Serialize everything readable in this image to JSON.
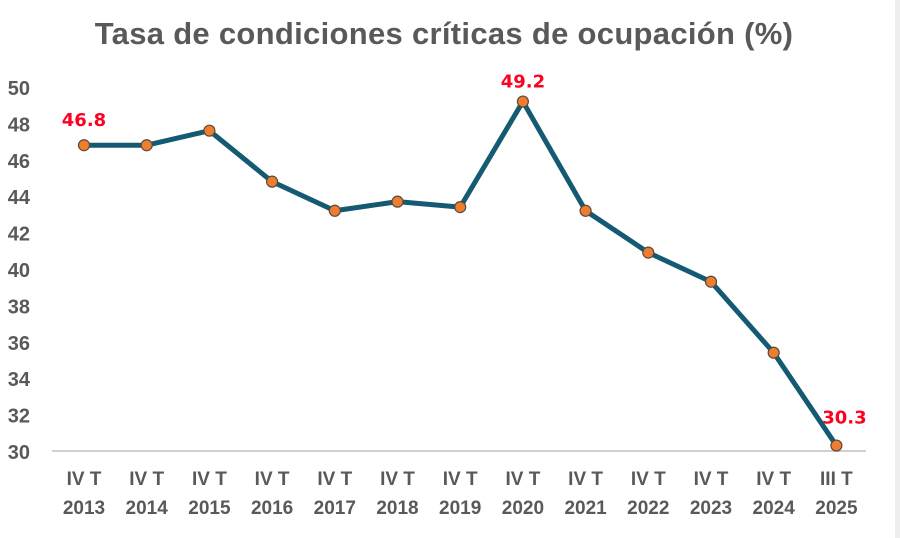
{
  "chart_data": {
    "type": "line",
    "title": "Tasa de condiciones críticas de ocupación (%)",
    "xlabel": "",
    "ylabel": "",
    "categories": [
      [
        "IV T",
        "2013"
      ],
      [
        "IV T",
        "2014"
      ],
      [
        "IV T",
        "2015"
      ],
      [
        "IV T",
        "2016"
      ],
      [
        "IV T",
        "2017"
      ],
      [
        "IV T",
        "2018"
      ],
      [
        "IV T",
        "2019"
      ],
      [
        "IV T",
        "2020"
      ],
      [
        "IV T",
        "2021"
      ],
      [
        "IV T",
        "2022"
      ],
      [
        "IV T",
        "2023"
      ],
      [
        "IV T",
        "2024"
      ],
      [
        "III T",
        "2025"
      ]
    ],
    "series": [
      {
        "values": [
          46.8,
          46.8,
          47.6,
          44.8,
          43.2,
          43.7,
          43.4,
          49.2,
          43.2,
          40.9,
          39.3,
          35.4,
          30.3
        ]
      }
    ],
    "data_labels": [
      {
        "index": 0,
        "text": "46.8"
      },
      {
        "index": 7,
        "text": "49.2"
      },
      {
        "index": 12,
        "text": "30.3"
      }
    ],
    "ylim": [
      30,
      50
    ],
    "yticks": [
      30,
      32,
      34,
      36,
      38,
      40,
      42,
      44,
      46,
      48,
      50
    ],
    "grid": false,
    "legend": "none",
    "colors": {
      "line": "#145a73",
      "marker": "#ed7d31",
      "marker_edge": "#5a4a3a",
      "label": "#ff0022",
      "axis_text": "#595959",
      "axis_line": "#d0d0d0"
    }
  }
}
